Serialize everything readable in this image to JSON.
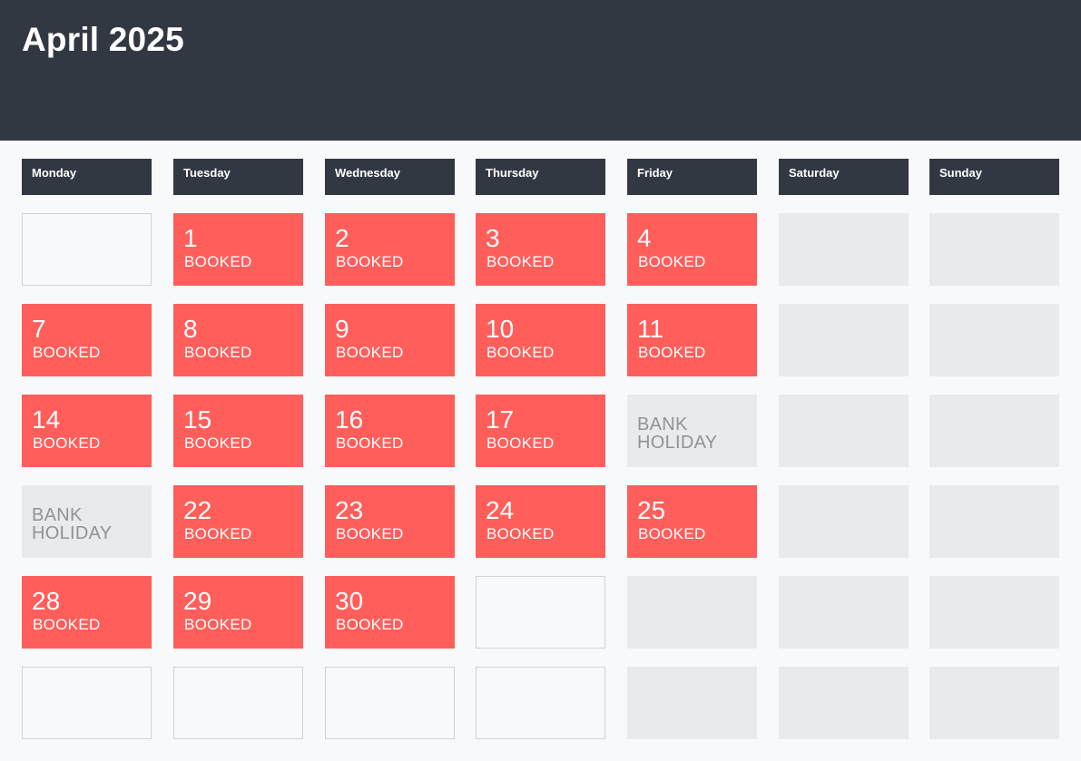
{
  "header": {
    "title": "April 2025"
  },
  "weekdays": [
    "Monday",
    "Tuesday",
    "Wednesday",
    "Thursday",
    "Friday",
    "Saturday",
    "Sunday"
  ],
  "weeks": [
    [
      {
        "type": "empty"
      },
      {
        "type": "booked",
        "day": "1",
        "status": "BOOKED"
      },
      {
        "type": "booked",
        "day": "2",
        "status": "BOOKED"
      },
      {
        "type": "booked",
        "day": "3",
        "status": "BOOKED"
      },
      {
        "type": "booked",
        "day": "4",
        "status": "BOOKED"
      },
      {
        "type": "weekend"
      },
      {
        "type": "weekend"
      }
    ],
    [
      {
        "type": "booked",
        "day": "7",
        "status": "BOOKED"
      },
      {
        "type": "booked",
        "day": "8",
        "status": "BOOKED"
      },
      {
        "type": "booked",
        "day": "9",
        "status": "BOOKED"
      },
      {
        "type": "booked",
        "day": "10",
        "status": "BOOKED"
      },
      {
        "type": "booked",
        "day": "11",
        "status": "BOOKED"
      },
      {
        "type": "weekend"
      },
      {
        "type": "weekend"
      }
    ],
    [
      {
        "type": "booked",
        "day": "14",
        "status": "BOOKED"
      },
      {
        "type": "booked",
        "day": "15",
        "status": "BOOKED"
      },
      {
        "type": "booked",
        "day": "16",
        "status": " BOOKED"
      },
      {
        "type": "booked",
        "day": "17",
        "status": "BOOKED"
      },
      {
        "type": "holiday",
        "label": "BANK HOLIDAY"
      },
      {
        "type": "weekend"
      },
      {
        "type": "weekend"
      }
    ],
    [
      {
        "type": "holiday",
        "label": "BANK HOLIDAY"
      },
      {
        "type": "booked",
        "day": "22",
        "status": "BOOKED"
      },
      {
        "type": "booked",
        "day": "23",
        "status": "BOOKED"
      },
      {
        "type": "booked",
        "day": "24",
        "status": "BOOKED"
      },
      {
        "type": "booked",
        "day": "25",
        "status": "BOOKED"
      },
      {
        "type": "weekend"
      },
      {
        "type": "weekend"
      }
    ],
    [
      {
        "type": "booked",
        "day": "28",
        "status": "BOOKED"
      },
      {
        "type": "booked",
        "day": "29",
        "status": "BOOKED"
      },
      {
        "type": "booked",
        "day": "30",
        "status": "BOOKED"
      },
      {
        "type": "empty"
      },
      {
        "type": "weekend"
      },
      {
        "type": "weekend"
      },
      {
        "type": "weekend"
      }
    ],
    [
      {
        "type": "empty"
      },
      {
        "type": "empty"
      },
      {
        "type": "empty"
      },
      {
        "type": "empty"
      },
      {
        "type": "weekend"
      },
      {
        "type": "weekend"
      },
      {
        "type": "weekend"
      }
    ]
  ],
  "colors": {
    "header_background": "#323842",
    "booked": "#ff5e5b",
    "holiday": "#e9eaeb",
    "holiday_text": "#8f9397",
    "weekend": "#e9eaeb",
    "page_background": "#f8f9fb",
    "empty_border": "#cfd2d7"
  }
}
